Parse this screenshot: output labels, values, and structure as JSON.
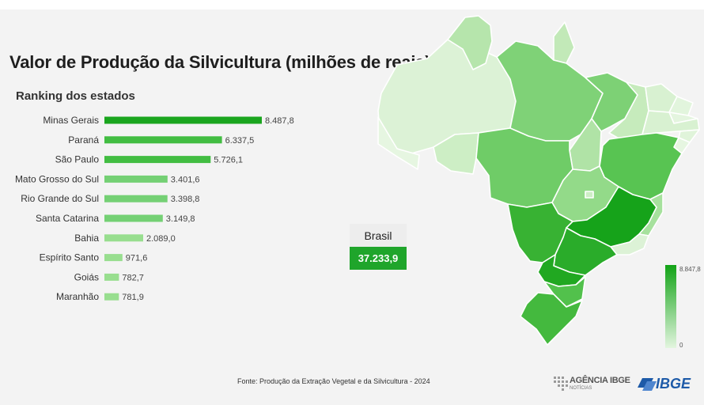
{
  "title": "Valor de Produção da Silvicultura (milhões de reais)",
  "subtitle": "Ranking dos estados",
  "chart_data": [
    {
      "type": "bar",
      "orientation": "horizontal",
      "title": "Ranking dos estados",
      "categories": [
        "Minas Gerais",
        "Paraná",
        "São Paulo",
        "Mato Grosso do Sul",
        "Rio Grande do Sul",
        "Santa Catarina",
        "Bahia",
        "Espírito Santo",
        "Goiás",
        "Maranhão"
      ],
      "values": [
        8487.8,
        6337.5,
        5726.1,
        3401.6,
        3398.8,
        3149.8,
        2089.0,
        971.6,
        782.7,
        781.9
      ],
      "value_labels": [
        "8.487,8",
        "6.337,5",
        "5.726,1",
        "3.401,6",
        "3.398,8",
        "3.149,8",
        "2.089,0",
        "971,6",
        "782,7",
        "781,9"
      ],
      "colors": [
        "#1aa51e",
        "#42bd42",
        "#42bd42",
        "#74d074",
        "#74d074",
        "#74d074",
        "#98de8f",
        "#98de8f",
        "#98de8f",
        "#98de8f"
      ],
      "grid": false,
      "legend": false
    },
    {
      "type": "heatmap",
      "subtype": "choropleth-map",
      "region": "Brasil",
      "colorbar": {
        "min": 0,
        "max": 8847.8,
        "min_label": "0",
        "max_label": "8.847,8",
        "color_low": "#e3f5df",
        "color_high": "#12a316"
      },
      "total": {
        "label": "Brasil",
        "value": 37233.9,
        "value_label": "37.233,9"
      }
    }
  ],
  "source": "Fonte: Produção da Extração Vegetal e da Silvicultura - 2024",
  "logos": {
    "agencia": "AGÊNCIA IBGE",
    "agencia_sub": "NOTÍCIAS",
    "ibge": "IBGE"
  },
  "colors": {
    "accent": "#1fa52b",
    "background": "#f3f3f3",
    "ibge_blue": "#1d5aa8"
  },
  "icons": [
    "agencia-ibge-logo-icon",
    "ibge-logo-icon"
  ]
}
